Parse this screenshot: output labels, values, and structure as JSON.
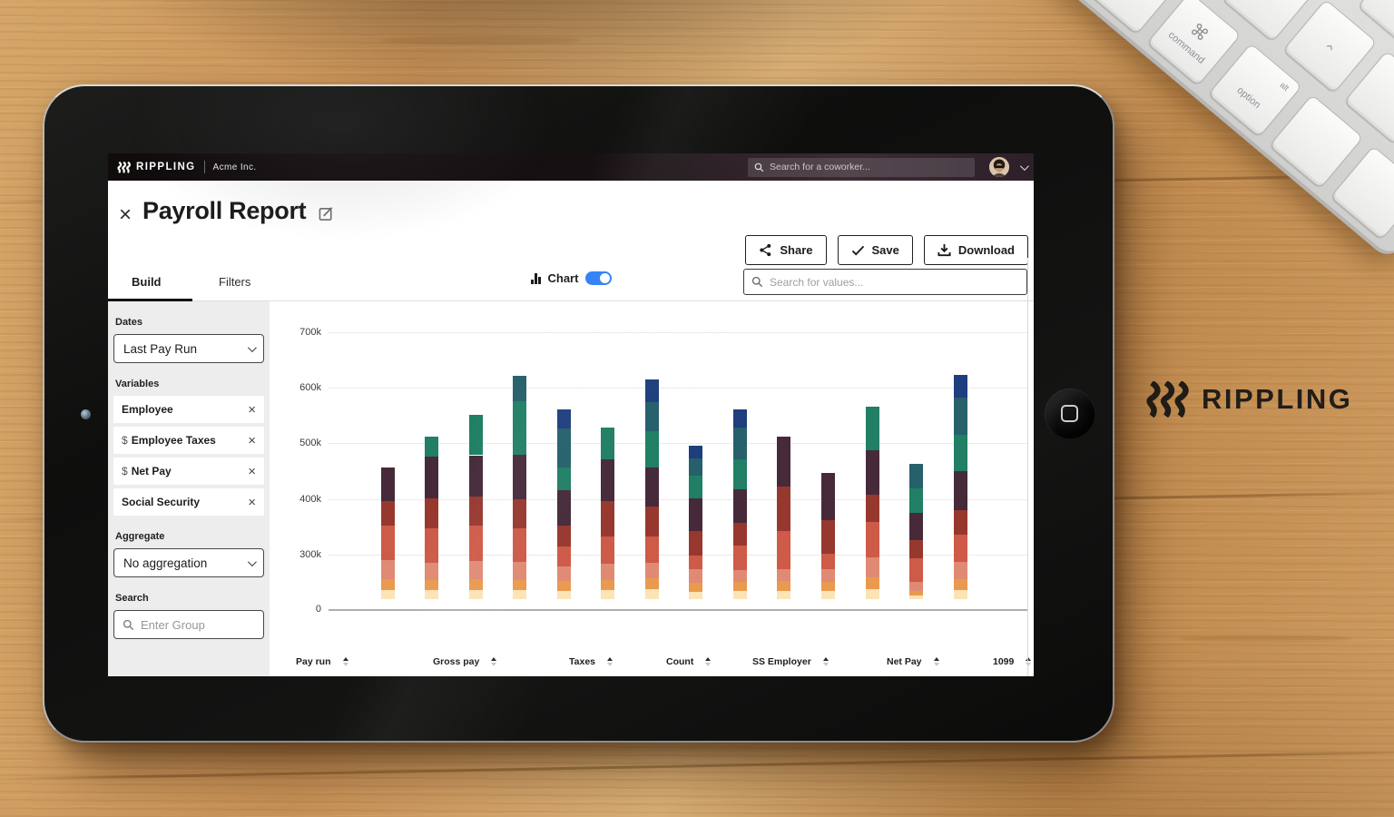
{
  "desk": {
    "brand": "RIPPLING",
    "keyboard": {
      "command_glyph": "⌘",
      "command_label": "command",
      "option_sub": "alt",
      "option_label": "option",
      "arrow_glyph": "›"
    }
  },
  "app": {
    "navbar": {
      "logo_text": "RIPPLING",
      "company": "Acme Inc.",
      "search_placeholder": "Search for a coworker..."
    },
    "header": {
      "title": "Payroll Report",
      "share": "Share",
      "save": "Save",
      "download": "Download"
    },
    "tabs": {
      "build": "Build",
      "filters": "Filters"
    },
    "chart_toggle_label": "Chart",
    "chart_toggle_on": true,
    "values_search_placeholder": "Search for values...",
    "sidebar": {
      "dates_label": "Dates",
      "dates_value": "Last Pay Run",
      "variables_label": "Variables",
      "chips": [
        {
          "prefix": "",
          "label": "Employee"
        },
        {
          "prefix": "$",
          "label": "Employee Taxes"
        },
        {
          "prefix": "$",
          "label": "Net Pay"
        },
        {
          "prefix": "",
          "label": "Social Security"
        }
      ],
      "aggregate_label": "Aggregate",
      "aggregate_value": "No aggregation",
      "search_label": "Search",
      "search_placeholder": "Enter Group"
    },
    "table_columns": [
      "Pay run",
      "Gross pay",
      "Taxes",
      "Count",
      "SS Employer",
      "Net Pay",
      "1099"
    ]
  },
  "chart_data": {
    "type": "bar",
    "stacked": true,
    "title": "",
    "y_axis": {
      "tick_labels": [
        "700k",
        "600k",
        "500k",
        "400k",
        "300k",
        "0"
      ],
      "unit": "k"
    },
    "values_are": "cumulative_stack_tops_in_thousands",
    "colors": {
      "cream": "#fbe4b5",
      "orange": "#ea9a4e",
      "salmon": "#e08a75",
      "red": "#ce5a48",
      "maroon": "#97382f",
      "plum": "#462a3a",
      "green": "#207f64",
      "teal": "#25606b",
      "navy": "#1e3e7d"
    },
    "bars": [
      {
        "stack": [
          [
            "cream",
            105
          ],
          [
            "orange",
            160
          ],
          [
            "salmon",
            265
          ],
          [
            "red",
            350
          ],
          [
            "maroon",
            395
          ],
          [
            "plum",
            455
          ]
        ]
      },
      {
        "stack": [
          [
            "cream",
            105
          ],
          [
            "orange",
            155
          ],
          [
            "salmon",
            250
          ],
          [
            "red",
            345
          ],
          [
            "maroon",
            400
          ],
          [
            "plum",
            475
          ],
          [
            "green",
            510
          ]
        ]
      },
      {
        "stack": [
          [
            "cream",
            105
          ],
          [
            "orange",
            160
          ],
          [
            "salmon",
            260
          ],
          [
            "red",
            350
          ],
          [
            "maroon",
            402
          ],
          [
            "plum",
            477
          ],
          [
            "green",
            550
          ]
        ]
      },
      {
        "stack": [
          [
            "cream",
            105
          ],
          [
            "orange",
            155
          ],
          [
            "salmon",
            255
          ],
          [
            "red",
            345
          ],
          [
            "maroon",
            397
          ],
          [
            "plum",
            477
          ],
          [
            "green",
            575
          ],
          [
            "teal",
            620
          ]
        ]
      },
      {
        "stack": [
          [
            "cream",
            100
          ],
          [
            "orange",
            150
          ],
          [
            "salmon",
            230
          ],
          [
            "red",
            313
          ],
          [
            "maroon",
            351
          ],
          [
            "plum",
            414
          ],
          [
            "green",
            455
          ],
          [
            "teal",
            526
          ],
          [
            "navy",
            560
          ]
        ]
      },
      {
        "stack": [
          [
            "cream",
            105
          ],
          [
            "orange",
            155
          ],
          [
            "salmon",
            245
          ],
          [
            "red",
            330
          ],
          [
            "maroon",
            395
          ],
          [
            "plum",
            470
          ],
          [
            "green",
            527
          ]
        ]
      },
      {
        "stack": [
          [
            "cream",
            110
          ],
          [
            "orange",
            165
          ],
          [
            "salmon",
            250
          ],
          [
            "red",
            330
          ],
          [
            "maroon",
            385
          ],
          [
            "plum",
            455
          ],
          [
            "green",
            520
          ],
          [
            "teal",
            572
          ],
          [
            "navy",
            613
          ]
        ]
      },
      {
        "stack": [
          [
            "cream",
            95
          ],
          [
            "orange",
            140
          ],
          [
            "salmon",
            215
          ],
          [
            "red",
            290
          ],
          [
            "maroon",
            340
          ],
          [
            "plum",
            400
          ],
          [
            "green",
            440
          ],
          [
            "teal",
            472
          ],
          [
            "navy",
            494
          ]
        ]
      },
      {
        "stack": [
          [
            "cream",
            100
          ],
          [
            "orange",
            145
          ],
          [
            "salmon",
            210
          ],
          [
            "red",
            315
          ],
          [
            "maroon",
            355
          ],
          [
            "plum",
            415
          ],
          [
            "green",
            470
          ],
          [
            "teal",
            527
          ],
          [
            "navy",
            560
          ]
        ]
      },
      {
        "stack": [
          [
            "cream",
            100
          ],
          [
            "orange",
            150
          ],
          [
            "salmon",
            215
          ],
          [
            "red",
            340
          ],
          [
            "maroon",
            420
          ],
          [
            "plum",
            510
          ]
        ]
      },
      {
        "stack": [
          [
            "cream",
            100
          ],
          [
            "orange",
            145
          ],
          [
            "salmon",
            215
          ],
          [
            "red",
            300
          ],
          [
            "maroon",
            360
          ],
          [
            "plum",
            445
          ]
        ]
      },
      {
        "stack": [
          [
            "cream",
            110
          ],
          [
            "orange",
            170
          ],
          [
            "salmon",
            280
          ],
          [
            "red",
            357
          ],
          [
            "maroon",
            406
          ],
          [
            "plum",
            486
          ],
          [
            "green",
            565
          ]
        ]
      },
      {
        "stack": [
          [
            "cream",
            75
          ],
          [
            "orange",
            97
          ],
          [
            "salmon",
            145
          ],
          [
            "red",
            276
          ],
          [
            "maroon",
            325
          ],
          [
            "plum",
            374
          ],
          [
            "green",
            417
          ],
          [
            "teal",
            462
          ]
        ]
      },
      {
        "stack": [
          [
            "cream",
            105
          ],
          [
            "orange",
            160
          ],
          [
            "salmon",
            257
          ],
          [
            "red",
            334
          ],
          [
            "maroon",
            378
          ],
          [
            "plum",
            448
          ],
          [
            "green",
            514
          ],
          [
            "teal",
            580
          ],
          [
            "navy",
            622
          ]
        ]
      }
    ]
  }
}
